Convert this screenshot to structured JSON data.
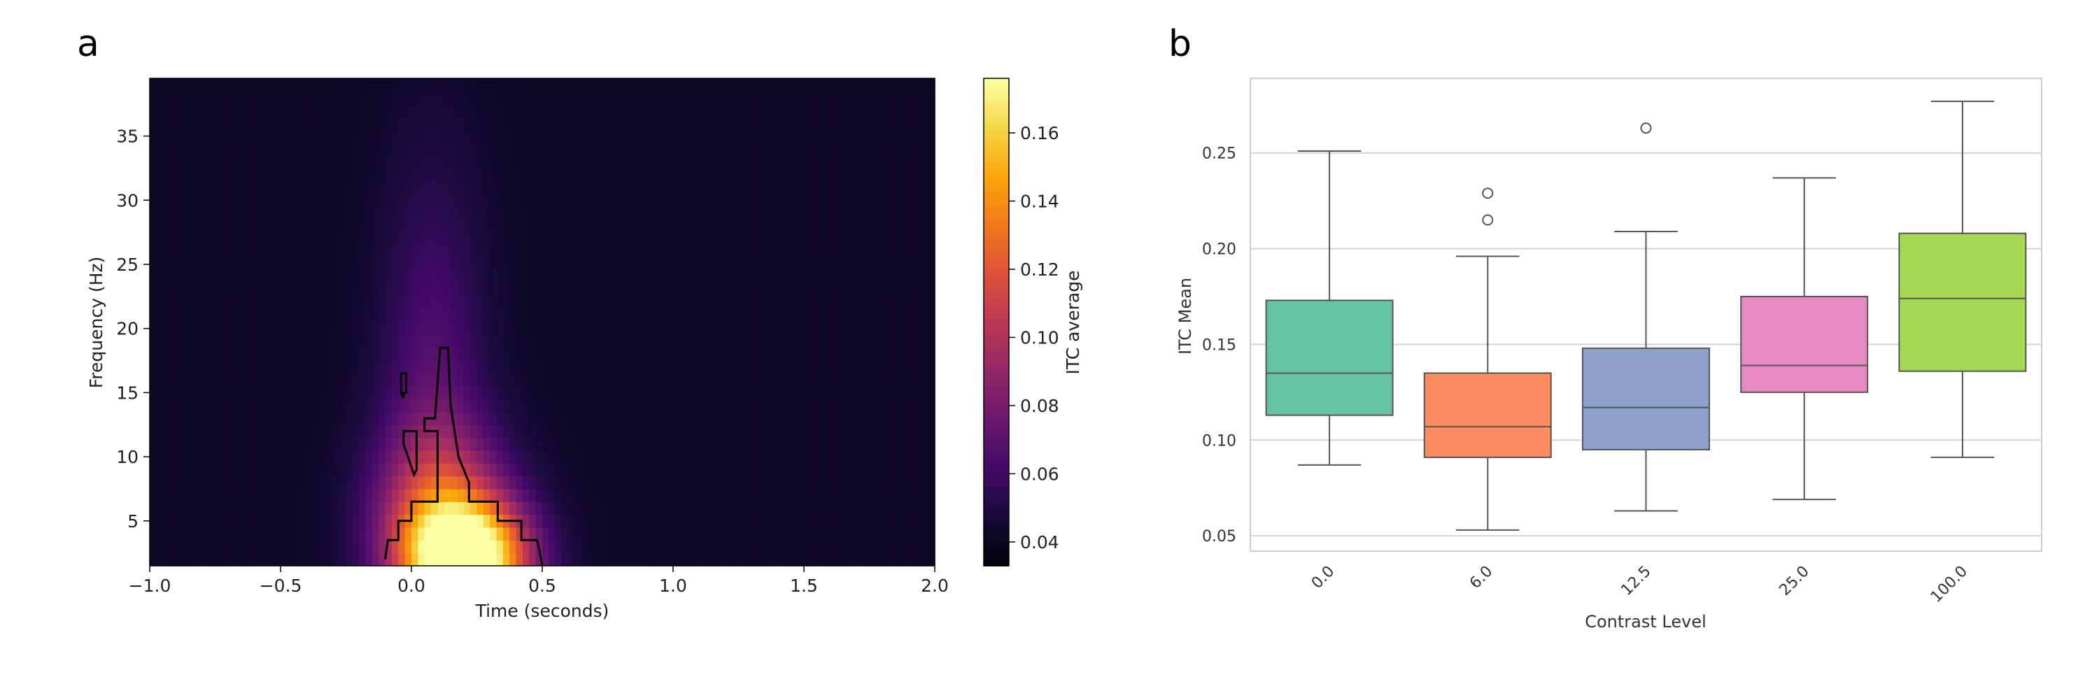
{
  "panels": {
    "a_label": "a",
    "b_label": "b"
  },
  "chart_data": [
    {
      "type": "heatmap",
      "panel": "a",
      "xlabel": "Time (seconds)",
      "ylabel": "Frequency (Hz)",
      "xlim": [
        -1.0,
        2.0
      ],
      "ylim": [
        1.5,
        39.5
      ],
      "x_ticks": [
        -1.0,
        -0.5,
        0.0,
        0.5,
        1.0,
        1.5,
        2.0
      ],
      "x_tick_labels": [
        "−1.0",
        "−0.5",
        "0.0",
        "0.5",
        "1.0",
        "1.5",
        "2.0"
      ],
      "y_ticks": [
        5,
        10,
        15,
        20,
        25,
        30,
        35
      ],
      "y_tick_labels": [
        "5",
        "10",
        "15",
        "20",
        "25",
        "30",
        "35"
      ],
      "colormap": "inferno",
      "colorbar": {
        "label": "ITC average",
        "range": [
          0.033,
          0.176
        ],
        "ticks": [
          0.04,
          0.06,
          0.08,
          0.1,
          0.12,
          0.14,
          0.16
        ],
        "tick_labels": [
          "0.04",
          "0.06",
          "0.08",
          "0.10",
          "0.12",
          "0.14",
          "0.16"
        ]
      },
      "grid": false,
      "field": {
        "baseline": 0.042,
        "peaks": [
          {
            "t": 0.22,
            "f": 2,
            "amp": 0.13,
            "t_spread": 0.16,
            "f_spread": 3.0
          },
          {
            "t": 0.12,
            "f": 5,
            "amp": 0.065,
            "t_spread": 0.18,
            "f_spread": 5.0
          },
          {
            "t": 0.08,
            "f": 15,
            "amp": 0.025,
            "t_spread": 0.14,
            "f_spread": 12.0
          }
        ]
      },
      "significance_contour": [
        [
          -0.1,
          2
        ],
        [
          -0.09,
          3.5
        ],
        [
          -0.05,
          3.5
        ],
        [
          -0.05,
          5
        ],
        [
          0.0,
          5
        ],
        [
          0.0,
          6.5
        ],
        [
          0.1,
          6.5
        ],
        [
          0.1,
          12
        ],
        [
          0.05,
          12
        ],
        [
          0.05,
          13
        ],
        [
          0.09,
          13
        ],
        [
          0.11,
          18.5
        ],
        [
          0.14,
          18.5
        ],
        [
          0.15,
          14
        ],
        [
          0.18,
          10
        ],
        [
          0.2,
          9
        ],
        [
          0.22,
          8
        ],
        [
          0.22,
          6.5
        ],
        [
          0.33,
          6.5
        ],
        [
          0.33,
          5
        ],
        [
          0.42,
          5
        ],
        [
          0.42,
          3.5
        ],
        [
          0.48,
          3.5
        ],
        [
          0.49,
          2.6
        ],
        [
          0.5,
          1.5
        ]
      ],
      "small_contours": [
        [
          [
            -0.04,
            16.5
          ],
          [
            -0.02,
            16.5
          ],
          [
            -0.02,
            15
          ],
          [
            -0.03,
            15
          ],
          [
            -0.03,
            14.6
          ],
          [
            -0.04,
            15
          ]
        ],
        [
          [
            -0.03,
            12
          ],
          [
            0.02,
            12
          ],
          [
            0.02,
            9
          ],
          [
            0.01,
            8.6
          ],
          [
            0.0,
            9.2
          ],
          [
            -0.03,
            11
          ]
        ]
      ]
    },
    {
      "type": "box",
      "panel": "b",
      "xlabel": "Contrast Level",
      "ylabel": "ITC Mean",
      "categories": [
        "0.0",
        "6.0",
        "12.5",
        "25.0",
        "100.0"
      ],
      "ylim": [
        0.042,
        0.289
      ],
      "y_ticks": [
        0.05,
        0.1,
        0.15,
        0.2,
        0.25
      ],
      "y_tick_labels": [
        "0.05",
        "0.10",
        "0.15",
        "0.20",
        "0.25"
      ],
      "grid": true,
      "boxes": [
        {
          "category": "0.0",
          "whisker_low": 0.087,
          "q1": 0.113,
          "median": 0.135,
          "q3": 0.173,
          "whisker_high": 0.251,
          "outliers": [],
          "color": "#66c2a5"
        },
        {
          "category": "6.0",
          "whisker_low": 0.053,
          "q1": 0.091,
          "median": 0.107,
          "q3": 0.135,
          "whisker_high": 0.196,
          "outliers": [
            0.215,
            0.229
          ],
          "color": "#fc8d62"
        },
        {
          "category": "12.5",
          "whisker_low": 0.063,
          "q1": 0.095,
          "median": 0.117,
          "q3": 0.148,
          "whisker_high": 0.209,
          "outliers": [
            0.263
          ],
          "color": "#8da0cb"
        },
        {
          "category": "25.0",
          "whisker_low": 0.069,
          "q1": 0.125,
          "median": 0.139,
          "q3": 0.175,
          "whisker_high": 0.237,
          "outliers": [],
          "color": "#e78ac3"
        },
        {
          "category": "100.0",
          "whisker_low": 0.091,
          "q1": 0.136,
          "median": 0.174,
          "q3": 0.208,
          "whisker_high": 0.277,
          "outliers": [],
          "color": "#a6d854"
        }
      ]
    }
  ]
}
